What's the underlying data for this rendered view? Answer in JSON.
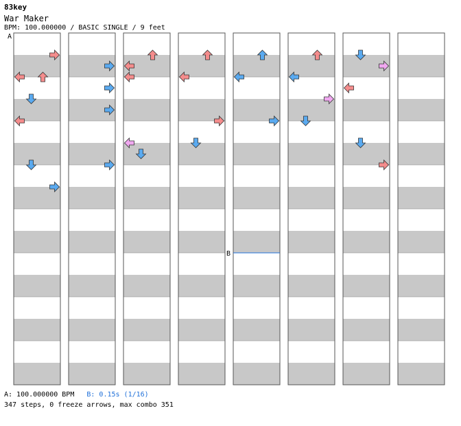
{
  "header": {
    "site": "83key",
    "song_title": "War Maker",
    "info": "BPM: 100.000000 / BASIC SINGLE / 9 feet"
  },
  "markers": {
    "a": "A",
    "b": "B"
  },
  "footer": {
    "bpm_a": "A: 100.000000 BPM",
    "bpm_b": "B: 0.15s (1/16)",
    "stats": "347 steps, 0 freeze arrows, max combo 351"
  },
  "colors": {
    "quarter_arrow": "#f48c8c",
    "eighth_arrow": "#5aaaf0",
    "sixteenth_arrow": "#f0a8f0",
    "band": "#c8c8c8",
    "border": "#555555",
    "stop_b": "#1e6fd9"
  },
  "chart": {
    "lanes": [
      "left",
      "down",
      "up",
      "right"
    ],
    "panel_count": 8,
    "beats_per_panel": 16,
    "visible_arrows": [
      {
        "panel": 1,
        "beat": 0.5,
        "lane": "right",
        "kind": "quarter"
      },
      {
        "panel": 1,
        "beat": 1.0,
        "lane": "left",
        "kind": "quarter"
      },
      {
        "panel": 1,
        "beat": 1.0,
        "lane": "up",
        "kind": "quarter"
      },
      {
        "panel": 1,
        "beat": 1.5,
        "lane": "down",
        "kind": "eighth"
      },
      {
        "panel": 1,
        "beat": 2.0,
        "lane": "left",
        "kind": "quarter"
      },
      {
        "panel": 1,
        "beat": 3.0,
        "lane": "down",
        "kind": "eighth"
      },
      {
        "panel": 1,
        "beat": 3.5,
        "lane": "right",
        "kind": "eighth"
      },
      {
        "panel": 2,
        "beat": 0.75,
        "lane": "right",
        "kind": "eighth"
      },
      {
        "panel": 2,
        "beat": 1.25,
        "lane": "right",
        "kind": "eighth"
      },
      {
        "panel": 2,
        "beat": 1.75,
        "lane": "right",
        "kind": "eighth"
      },
      {
        "panel": 2,
        "beat": 3.0,
        "lane": "right",
        "kind": "eighth"
      },
      {
        "panel": 3,
        "beat": 0.5,
        "lane": "up",
        "kind": "quarter"
      },
      {
        "panel": 3,
        "beat": 0.75,
        "lane": "left",
        "kind": "quarter"
      },
      {
        "panel": 3,
        "beat": 1.0,
        "lane": "left",
        "kind": "quarter"
      },
      {
        "panel": 3,
        "beat": 2.5,
        "lane": "left",
        "kind": "sixteenth"
      },
      {
        "panel": 3,
        "beat": 2.75,
        "lane": "down",
        "kind": "eighth"
      },
      {
        "panel": 4,
        "beat": 0.5,
        "lane": "up",
        "kind": "quarter"
      },
      {
        "panel": 4,
        "beat": 1.0,
        "lane": "left",
        "kind": "quarter"
      },
      {
        "panel": 4,
        "beat": 2.0,
        "lane": "right",
        "kind": "quarter"
      },
      {
        "panel": 4,
        "beat": 2.5,
        "lane": "down",
        "kind": "eighth"
      },
      {
        "panel": 5,
        "beat": 0.5,
        "lane": "up",
        "kind": "eighth"
      },
      {
        "panel": 5,
        "beat": 1.0,
        "lane": "left",
        "kind": "eighth"
      },
      {
        "panel": 5,
        "beat": 2.0,
        "lane": "right",
        "kind": "eighth"
      },
      {
        "panel": 6,
        "beat": 0.5,
        "lane": "up",
        "kind": "quarter"
      },
      {
        "panel": 6,
        "beat": 1.0,
        "lane": "left",
        "kind": "eighth"
      },
      {
        "panel": 6,
        "beat": 1.5,
        "lane": "right",
        "kind": "sixteenth"
      },
      {
        "panel": 6,
        "beat": 2.0,
        "lane": "down",
        "kind": "eighth"
      },
      {
        "panel": 7,
        "beat": 0.5,
        "lane": "down",
        "kind": "eighth"
      },
      {
        "panel": 7,
        "beat": 0.75,
        "lane": "right",
        "kind": "sixteenth"
      },
      {
        "panel": 7,
        "beat": 1.25,
        "lane": "left",
        "kind": "quarter"
      },
      {
        "panel": 7,
        "beat": 2.5,
        "lane": "down",
        "kind": "eighth"
      },
      {
        "panel": 7,
        "beat": 3.0,
        "lane": "right",
        "kind": "quarter"
      }
    ]
  }
}
